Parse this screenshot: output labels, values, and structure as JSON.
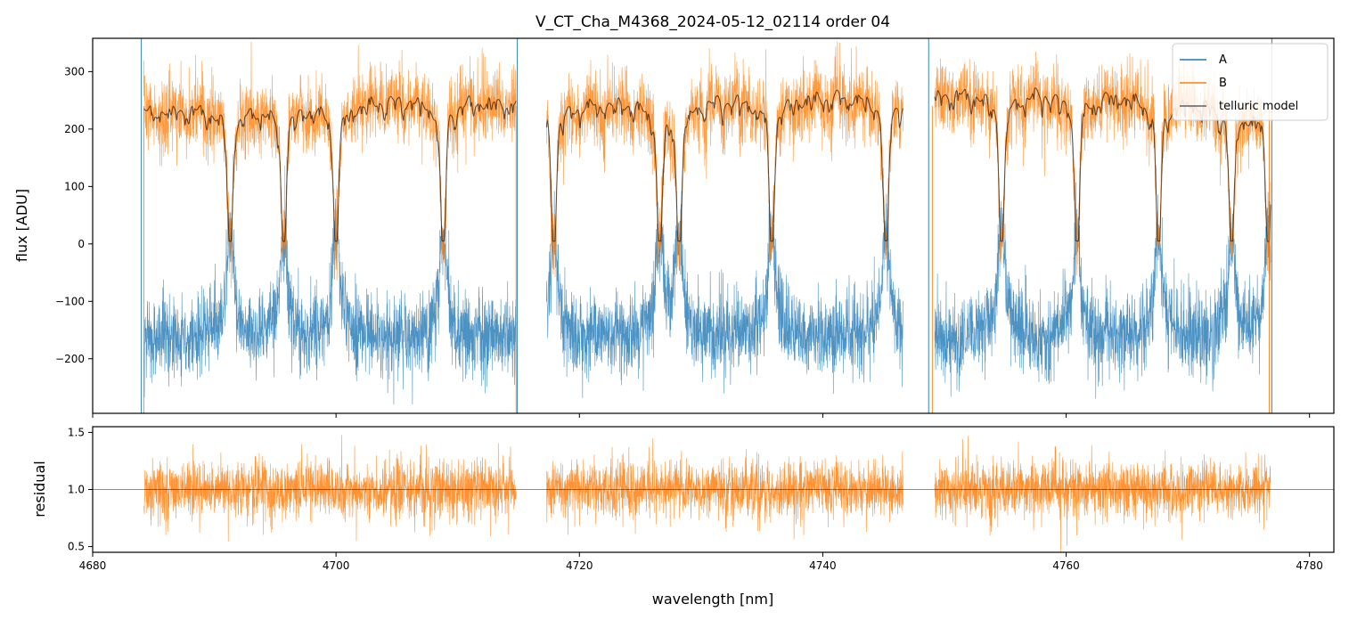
{
  "chart_data": {
    "type": "line",
    "title": "V_CT_Cha_M4368_2024-05-12_02114  order 04",
    "xlabel": "wavelength [nm]",
    "xlim": [
      4680,
      4782
    ],
    "x_ticks": [
      "4680",
      "4700",
      "4720",
      "4740",
      "4760",
      "4780"
    ],
    "x_tick_values": [
      4680,
      4700,
      4720,
      4740,
      4760,
      4780
    ],
    "segments": [
      [
        4684.2,
        4714.8
      ],
      [
        4717.3,
        4746.6
      ],
      [
        4749.2,
        4776.8
      ]
    ],
    "line_centers": [
      4691.3,
      4695.7,
      4700.0,
      4708.8,
      4717.9,
      4726.6,
      4728.2,
      4735.8,
      4745.2,
      4754.7,
      4760.9,
      4767.6,
      4773.6,
      4776.6
    ],
    "legend": {
      "location": "upper right",
      "entries": [
        {
          "label": "A",
          "color": "#1f77b4"
        },
        {
          "label": "B",
          "color": "#ff7f0e"
        },
        {
          "label": "telluric model",
          "color": "#000000"
        }
      ]
    },
    "panels": [
      {
        "name": "flux",
        "ylabel": "flux [ADU]",
        "ylim": [
          -295,
          358
        ],
        "y_ticks": [
          "300",
          "200",
          "100",
          "0",
          "−100",
          "−200"
        ],
        "y_tick_values": [
          300,
          200,
          100,
          0,
          -100,
          -200
        ],
        "series": [
          {
            "name": "A",
            "color": "#1f77b4",
            "baseline": -160,
            "noise": 35,
            "line_peak_height": 140
          },
          {
            "name": "B",
            "color": "#ff7f0e",
            "continuum": [
              230,
              235,
              250,
              240,
              245,
              255,
              260,
              255,
              230
            ],
            "noise": 38
          },
          {
            "name": "telluric model",
            "color": "#000000",
            "continuum": [
              230,
              235,
              250,
              240,
              245,
              255,
              260,
              255,
              230
            ],
            "min_depth_value": 0
          }
        ]
      },
      {
        "name": "residual",
        "ylabel": "residual",
        "ylim": [
          0.45,
          1.55
        ],
        "y_ticks": [
          "1.5",
          "1.0",
          "0.5"
        ],
        "y_tick_values": [
          1.5,
          1.0,
          0.5
        ],
        "reference_line": 1.0,
        "series": [
          {
            "name": "B",
            "color": "#ff7f0e",
            "center": 1.0,
            "noise": 0.13
          }
        ]
      }
    ]
  }
}
